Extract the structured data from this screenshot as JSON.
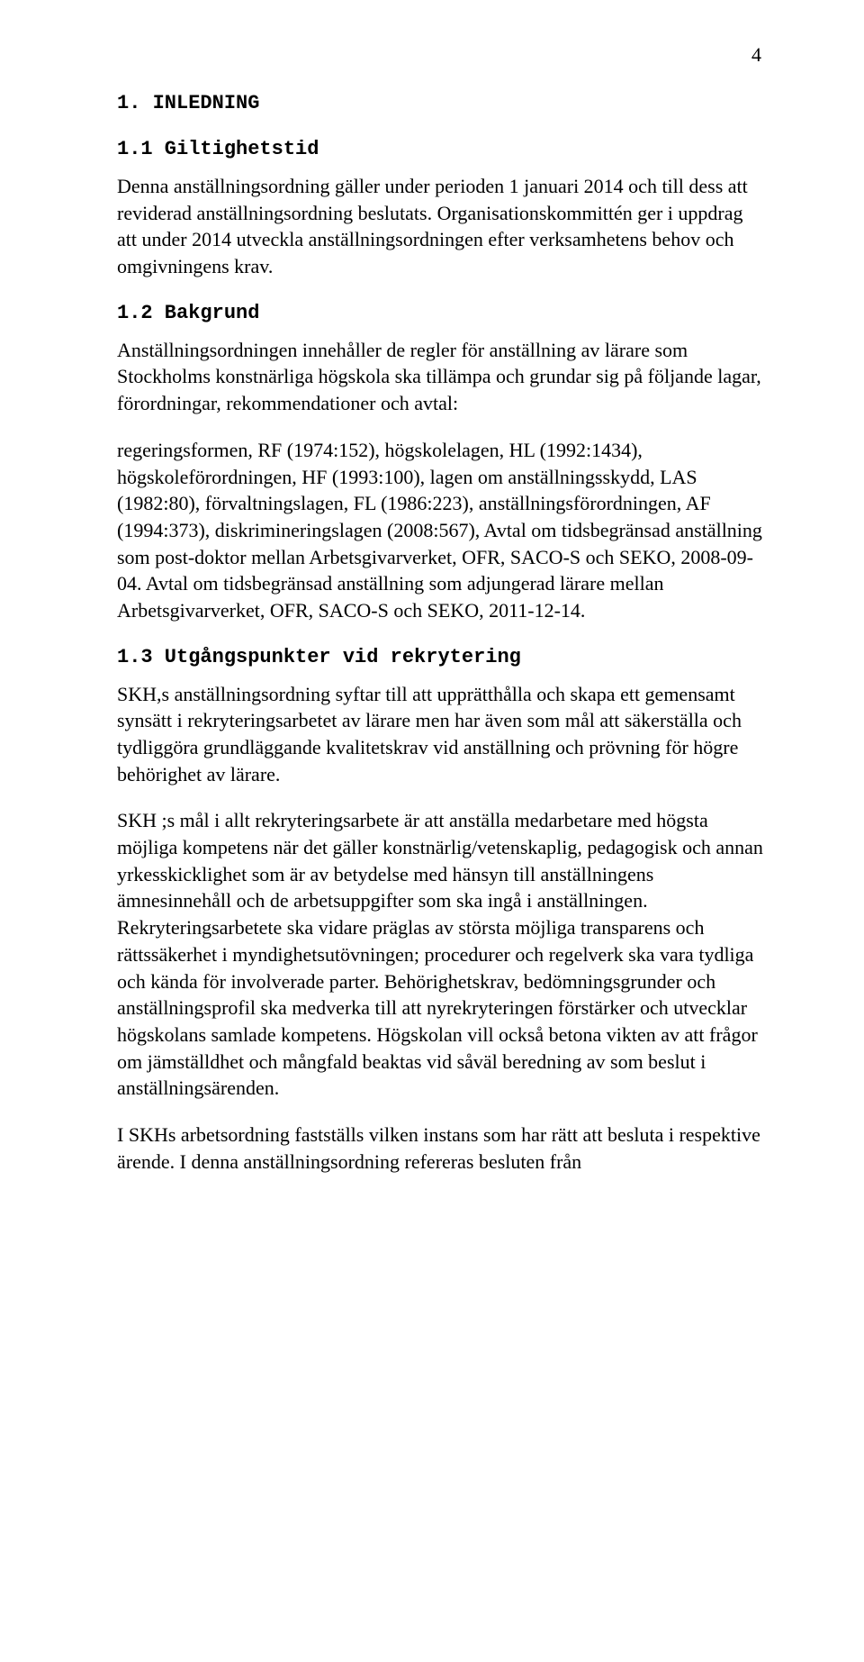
{
  "page_number": "4",
  "h1": "1. INLEDNING",
  "h2_1": "1.1 Giltighetstid",
  "p1": "Denna anställningsordning gäller under perioden 1 januari 2014 och till dess att reviderad anställningsordning beslutats. Organisationskommittén ger i uppdrag att under 2014 utveckla anställningsordningen efter verksamhetens behov och omgivningens krav.",
  "h2_2": "1.2 Bakgrund",
  "p2": "Anställningsordningen innehåller de regler för anställning av lärare som Stockholms konstnärliga högskola ska tillämpa och grundar sig på följande lagar, förordningar, rekommendationer och avtal:",
  "p3": "regeringsformen, RF (1974:152), högskolelagen, HL (1992:1434), högskoleförordningen, HF (1993:100), lagen om anställningsskydd, LAS (1982:80), förvaltningslagen, FL (1986:223), anställningsförordningen, AF (1994:373), diskrimineringslagen (2008:567), Avtal om tidsbegränsad anställning som post-doktor mellan Arbetsgivarverket, OFR, SACO-S och SEKO, 2008-09-04. Avtal om tidsbegränsad anställning som adjungerad lärare mellan Arbetsgivarverket, OFR, SACO-S och SEKO, 2011-12-14.",
  "h2_3": "1.3 Utgångspunkter vid rekrytering",
  "p4": "SKH,s anställningsordning syftar till att upprätthålla och skapa ett gemensamt synsätt i rekryteringsarbetet av lärare men har även som mål att säkerställa och tydliggöra grundläggande kvalitetskrav vid anställning och prövning för högre behörighet av lärare.",
  "p5": "SKH ;s mål i allt rekryteringsarbete är att anställa medarbetare med högsta möjliga kompetens när det gäller konstnärlig/vetenskaplig, pedagogisk och annan yrkesskicklighet som är av betydelse med hänsyn till anställningens ämnesinnehåll och de arbetsuppgifter som ska ingå i anställningen. Rekryteringsarbetete ska vidare präglas av största möjliga transparens och rättssäkerhet i myndighetsutövningen; procedurer och regelverk ska vara tydliga och kända för involverade parter. Behörighetskrav, bedömningsgrunder och anställningsprofil ska medverka till att nyrekryteringen förstärker och utvecklar högskolans samlade kompetens. Högskolan vill också betona vikten av att frågor om jämställdhet och mångfald beaktas vid såväl beredning av som beslut i anställningsärenden.",
  "p6": "I SKHs arbetsordning fastställs vilken instans som har rätt att besluta i respektive ärende. I denna anställningsordning refereras besluten från"
}
